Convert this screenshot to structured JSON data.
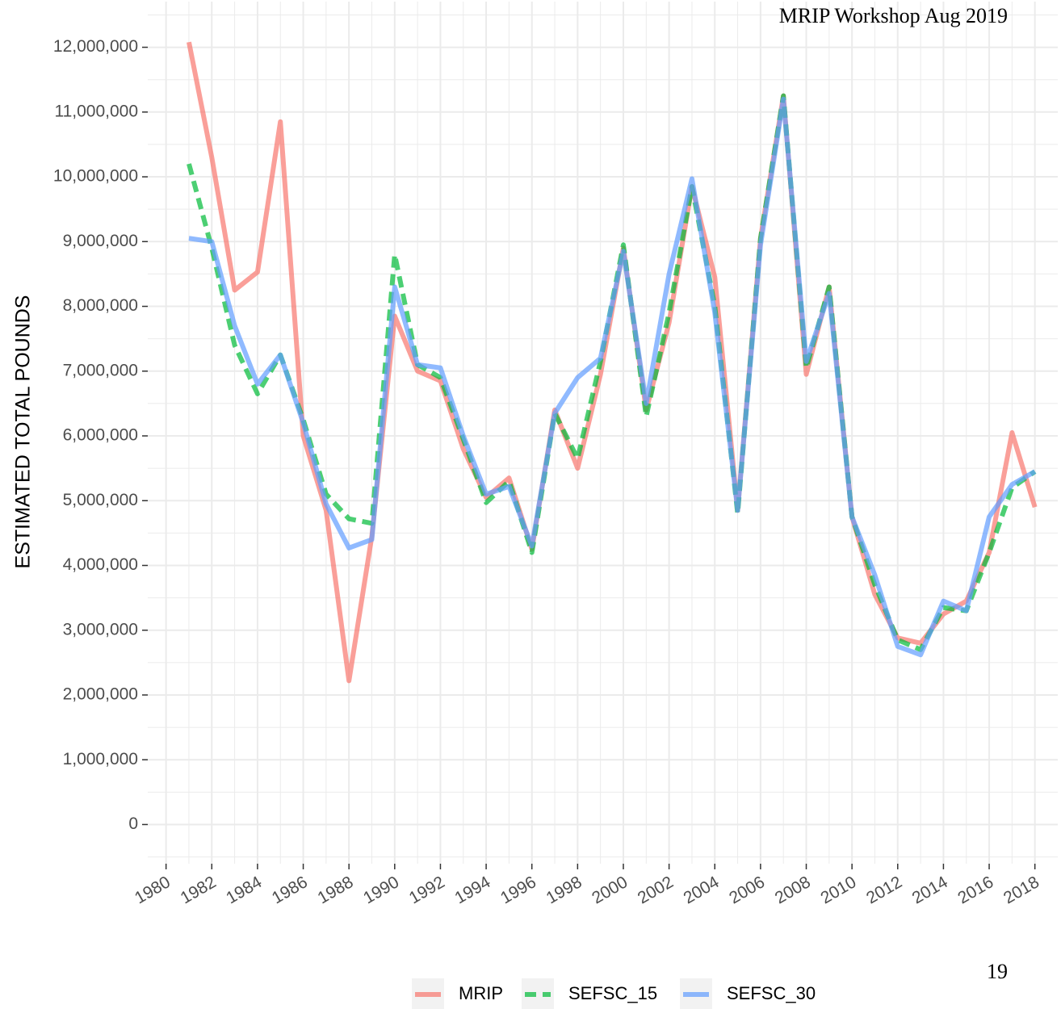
{
  "chart_data": {
    "type": "line",
    "annotations": [
      "MRIP Workshop Aug 2019",
      "19"
    ],
    "y_label": "ESTIMATED TOTAL POUNDS",
    "x": [
      1981,
      1982,
      1983,
      1984,
      1985,
      1986,
      1987,
      1988,
      1989,
      1990,
      1991,
      1992,
      1993,
      1994,
      1995,
      1996,
      1997,
      1998,
      1999,
      2000,
      2001,
      2002,
      2003,
      2004,
      2005,
      2006,
      2007,
      2008,
      2009,
      2010,
      2011,
      2012,
      2013,
      2014,
      2015,
      2016,
      2017,
      2018
    ],
    "series": [
      {
        "name": "MRIP",
        "color": "#F8766D",
        "linestyle": "solid",
        "values": [
          12080000,
          10300000,
          8250000,
          8530000,
          10850000,
          6000000,
          4850000,
          2220000,
          4450000,
          7850000,
          7000000,
          6850000,
          5800000,
          5050000,
          5350000,
          4250000,
          6400000,
          5500000,
          6950000,
          8900000,
          6400000,
          7750000,
          9850000,
          8450000,
          4850000,
          9050000,
          11250000,
          6950000,
          8300000,
          4750000,
          3550000,
          2880000,
          2800000,
          3250000,
          3450000,
          4200000,
          6050000,
          4900000
        ]
      },
      {
        "name": "SEFSC_15",
        "color": "#00BA38",
        "linestyle": "dashed",
        "values": [
          10200000,
          8900000,
          7400000,
          6650000,
          7250000,
          6250000,
          5100000,
          4720000,
          4650000,
          8800000,
          7100000,
          6900000,
          5950000,
          4970000,
          5300000,
          4200000,
          6350000,
          5650000,
          7150000,
          8950000,
          6300000,
          7900000,
          9850000,
          8000000,
          4800000,
          9050000,
          11250000,
          7050000,
          8300000,
          4750000,
          3700000,
          2850000,
          2700000,
          3350000,
          3300000,
          4200000,
          5200000,
          5450000
        ]
      },
      {
        "name": "SEFSC_30",
        "color": "#619CFF",
        "linestyle": "solid",
        "values": [
          9050000,
          9000000,
          7700000,
          6800000,
          7250000,
          6200000,
          4950000,
          4270000,
          4400000,
          8300000,
          7100000,
          7050000,
          6000000,
          5100000,
          5220000,
          4300000,
          6350000,
          6900000,
          7200000,
          8850000,
          6500000,
          8500000,
          9970000,
          7900000,
          4850000,
          8950000,
          11200000,
          7150000,
          8200000,
          4750000,
          3850000,
          2750000,
          2620000,
          3450000,
          3300000,
          4750000,
          5250000,
          5450000
        ]
      }
    ],
    "xlim": [
      1979.2,
      2019
    ],
    "xticks": [
      1980,
      1982,
      1984,
      1986,
      1988,
      1990,
      1992,
      1994,
      1996,
      1998,
      2000,
      2002,
      2004,
      2006,
      2008,
      2010,
      2012,
      2014,
      2016,
      2018
    ],
    "ylim": [
      -605000,
      12705000
    ],
    "yticks": [
      0,
      {
        "value": 1000000,
        "label": "1,000,000"
      },
      {
        "value": 2000000,
        "label": "2,000,000"
      },
      {
        "value": 3000000,
        "label": "3,000,000"
      },
      {
        "value": 4000000,
        "label": "4,000,000"
      },
      {
        "value": 5000000,
        "label": "5,000,000"
      },
      {
        "value": 6000000,
        "label": "6,000,000"
      },
      {
        "value": 7000000,
        "label": "7,000,000"
      },
      {
        "value": 8000000,
        "label": "8,000,000"
      },
      {
        "value": 9000000,
        "label": "9,000,000"
      },
      {
        "value": 10000000,
        "label": "10,000,000"
      },
      {
        "value": 11000000,
        "label": "11,000,000"
      },
      {
        "value": 12000000,
        "label": "12,000,000"
      }
    ],
    "grid": true,
    "legend": "bottom"
  }
}
